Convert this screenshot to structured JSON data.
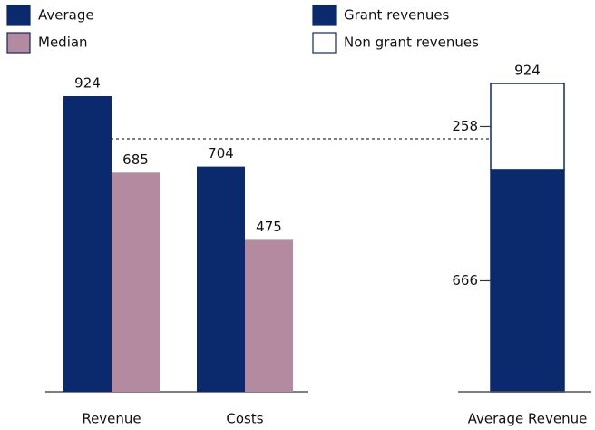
{
  "chart_data": [
    {
      "type": "bar",
      "categories": [
        "Revenue",
        "Costs"
      ],
      "series": [
        {
          "name": "Average",
          "color": "#0b2a6e",
          "values": [
            924,
            704
          ]
        },
        {
          "name": "Median",
          "color": "#b48aa0",
          "values": [
            685,
            475
          ]
        }
      ]
    },
    {
      "type": "stacked_bar",
      "categories": [
        "Average Revenue"
      ],
      "series": [
        {
          "name": "Grant revenues",
          "color": "#0b2a6e",
          "values": [
            666
          ]
        },
        {
          "name": "Non grant revenues",
          "color": "#ffffff",
          "values": [
            258
          ]
        }
      ],
      "totals": [
        924
      ]
    }
  ]
}
